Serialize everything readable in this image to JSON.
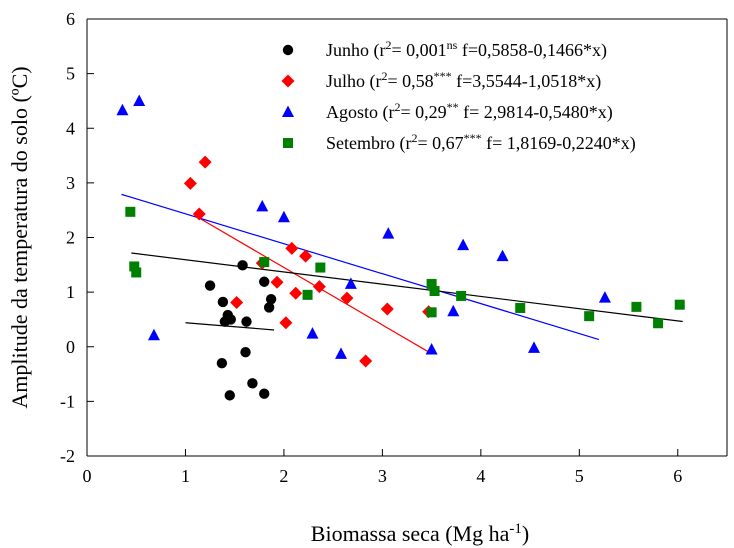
{
  "chart_data": {
    "type": "scatter",
    "xlabel": "Biomassa seca (Mg ha",
    "xlabel_sup": "-1",
    "xlabel_end": ")",
    "ylabel": "Amplitude da temperatura do solo (ºC)",
    "xlim": [
      0,
      6.5
    ],
    "ylim": [
      -2,
      6
    ],
    "xticks": [
      "0",
      "1",
      "2",
      "3",
      "4",
      "5",
      "6"
    ],
    "yticks": [
      "-2",
      "-1",
      "0",
      "1",
      "2",
      "3",
      "4",
      "5",
      "6"
    ],
    "legend_position": "top-right",
    "series": [
      {
        "name": "Junho",
        "marker": "circle",
        "color": "#000000",
        "legend": {
          "pre": "Junho (r",
          "sup1": "2",
          "mid": "= 0,001",
          "sup2": "ns",
          "post": " f=0,5858-0,1466*x)"
        },
        "fit": {
          "intercept": 0.5858,
          "slope": -0.1466,
          "x_range": [
            1.0,
            1.9
          ]
        },
        "points": [
          [
            1.25,
            1.12
          ],
          [
            1.38,
            0.82
          ],
          [
            1.43,
            0.58
          ],
          [
            1.46,
            0.5
          ],
          [
            1.4,
            0.46
          ],
          [
            1.58,
            1.49
          ],
          [
            1.62,
            0.46
          ],
          [
            1.37,
            -0.3
          ],
          [
            1.61,
            -0.1
          ],
          [
            1.68,
            -0.67
          ],
          [
            1.45,
            -0.89
          ],
          [
            1.8,
            -0.86
          ],
          [
            1.8,
            1.19
          ],
          [
            1.85,
            0.72
          ],
          [
            1.87,
            0.87
          ]
        ]
      },
      {
        "name": "Julho",
        "marker": "diamond",
        "color": "#ff0000",
        "legend": {
          "pre": "Julho (r",
          "sup1": "2",
          "mid": "= 0,58",
          "sup2": "***",
          "post": " f=3,5544-1,0518*x)"
        },
        "fit": {
          "intercept": 3.5544,
          "slope": -1.0518,
          "x_range": [
            1.1,
            3.5
          ]
        },
        "points": [
          [
            1.05,
            2.99
          ],
          [
            1.2,
            3.38
          ],
          [
            1.14,
            2.43
          ],
          [
            1.52,
            0.81
          ],
          [
            1.93,
            1.18
          ],
          [
            1.78,
            1.53
          ],
          [
            2.08,
            1.8
          ],
          [
            2.22,
            1.66
          ],
          [
            2.12,
            0.98
          ],
          [
            2.36,
            1.1
          ],
          [
            2.02,
            0.44
          ],
          [
            2.64,
            0.89
          ],
          [
            3.05,
            0.69
          ],
          [
            2.83,
            -0.26
          ],
          [
            3.47,
            0.64
          ]
        ]
      },
      {
        "name": "Agosto",
        "marker": "triangle",
        "color": "#0000ff",
        "legend": {
          "pre": "Agosto (r",
          "sup1": "2",
          "mid": "= 0,29",
          "sup2": "**",
          "post": " f= 2,9814-0,5480*x)"
        },
        "fit": {
          "intercept": 2.9814,
          "slope": -0.548,
          "x_range": [
            0.35,
            5.2
          ]
        },
        "points": [
          [
            0.36,
            4.33
          ],
          [
            0.53,
            4.5
          ],
          [
            0.68,
            0.21
          ],
          [
            1.78,
            2.57
          ],
          [
            2.0,
            2.37
          ],
          [
            2.68,
            1.15
          ],
          [
            2.29,
            0.24
          ],
          [
            2.58,
            -0.13
          ],
          [
            3.06,
            2.07
          ],
          [
            3.82,
            1.86
          ],
          [
            3.72,
            0.65
          ],
          [
            3.5,
            -0.05
          ],
          [
            4.22,
            1.66
          ],
          [
            4.54,
            -0.02
          ],
          [
            5.26,
            0.9
          ]
        ]
      },
      {
        "name": "Setembro",
        "marker": "square",
        "color": "#008000",
        "legend": {
          "pre": "Setembro (r",
          "sup1": "2",
          "mid": "= 0,67",
          "sup2": "***",
          "post": " f= 1,8169-0,2240*x)"
        },
        "fit": {
          "intercept": 1.8169,
          "slope": -0.224,
          "x_range": [
            0.45,
            6.05
          ]
        },
        "points": [
          [
            0.44,
            2.47
          ],
          [
            0.48,
            1.47
          ],
          [
            0.5,
            1.36
          ],
          [
            1.8,
            1.55
          ],
          [
            2.24,
            0.95
          ],
          [
            2.37,
            1.45
          ],
          [
            3.5,
            1.15
          ],
          [
            3.53,
            1.02
          ],
          [
            3.5,
            0.63
          ],
          [
            3.8,
            0.93
          ],
          [
            4.4,
            0.71
          ],
          [
            5.1,
            0.56
          ],
          [
            5.58,
            0.73
          ],
          [
            5.8,
            0.43
          ],
          [
            6.02,
            0.77
          ]
        ]
      }
    ]
  }
}
